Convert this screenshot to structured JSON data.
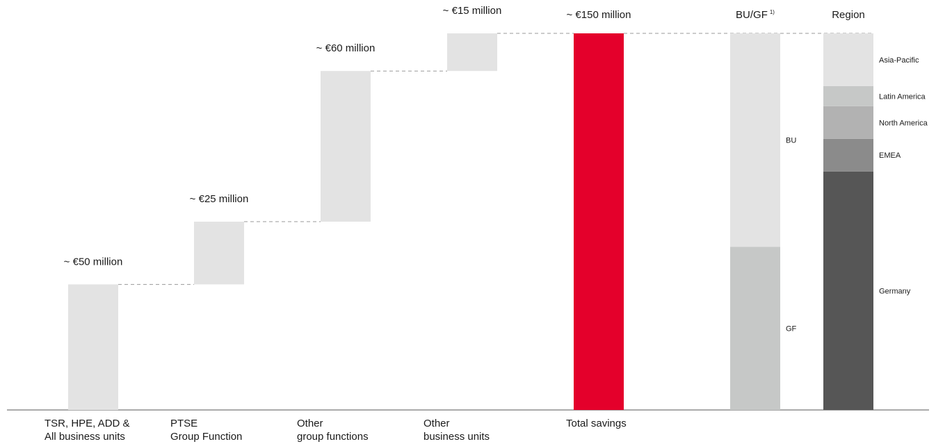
{
  "chart_data": {
    "type": "bar",
    "subtype": "waterfall",
    "ylim": [
      0,
      150
    ],
    "waterfall": [
      {
        "value_label": "~ €50 million",
        "category": [
          "TSR, HPE, ADD &",
          "All business units"
        ],
        "value": 50,
        "color": "#e3e3e3"
      },
      {
        "value_label": "~ €25 million",
        "category": [
          "PTSE",
          "Group Function"
        ],
        "value": 25,
        "color": "#e3e3e3"
      },
      {
        "value_label": "~ €60 million",
        "category": [
          "Other",
          "group functions"
        ],
        "value": 60,
        "color": "#e3e3e3"
      },
      {
        "value_label": "~ €15 million",
        "category": [
          "Other",
          "business units"
        ],
        "value": 15,
        "color": "#e3e3e3"
      }
    ],
    "total": {
      "value_label": "~ €150 million",
      "category": [
        "Total savings"
      ],
      "value": 150,
      "color": "#e4002b"
    },
    "stacks": [
      {
        "header": "BU/GF",
        "header_sup": "1)",
        "segments": [
          {
            "name": "GF",
            "value": 65,
            "color": "#c6c8c7"
          },
          {
            "name": "BU",
            "value": 85,
            "color": "#e3e3e3"
          }
        ]
      },
      {
        "header": "Region",
        "header_sup": "",
        "segments": [
          {
            "name": "Germany",
            "value": 95,
            "color": "#565656"
          },
          {
            "name": "EMEA",
            "value": 13,
            "color": "#8b8b8b"
          },
          {
            "name": "North America",
            "value": 13,
            "color": "#b2b2b2"
          },
          {
            "name": "Latin America",
            "value": 8,
            "color": "#c6c8c7"
          },
          {
            "name": "Asia-Pacific",
            "value": 21,
            "color": "#e3e3e3"
          }
        ]
      }
    ],
    "colors": {
      "axis": "#555555",
      "connector": "#9a9a9a"
    }
  }
}
